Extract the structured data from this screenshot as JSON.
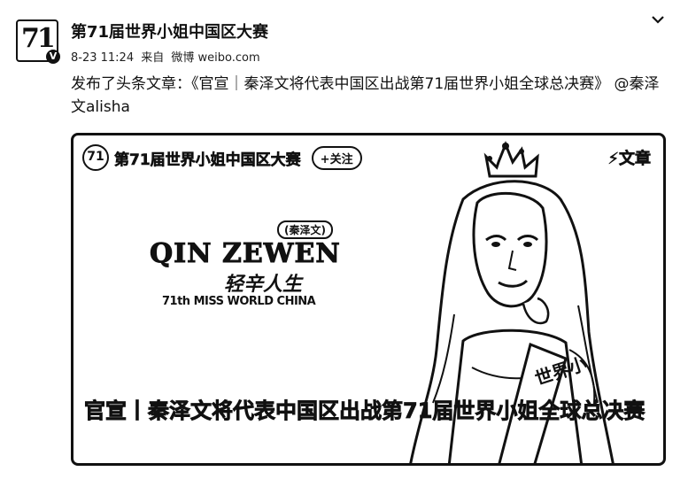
{
  "account": {
    "name": "第71届世界小姐中国区大赛",
    "avatar_text": "71",
    "verified_mark": "V"
  },
  "meta": {
    "date": "8-23 11:24",
    "source_prefix": "来自",
    "source": "微博 weibo.com"
  },
  "post": {
    "text": "发布了头条文章：《官宣｜秦泽文将代表中国区出战第71届世界小姐全球总决赛》",
    "mention": "@秦泽文alisha"
  },
  "card": {
    "source_logo": "71",
    "source_name": "第71届世界小姐中国区大赛",
    "follow_label": "+关注",
    "article_tag": "⚡文章",
    "label_small": "(秦泽文)",
    "big_name": "QIN ZEWEN",
    "slogan": "轻辛人生",
    "subline": "71th MISS WORLD CHINA",
    "caption": "官宣丨秦泽文将代表中国区出战第71届世界小姐全球总决赛"
  },
  "icons": [
    "chevron-down-icon",
    "verified-icon",
    "article-icon"
  ]
}
